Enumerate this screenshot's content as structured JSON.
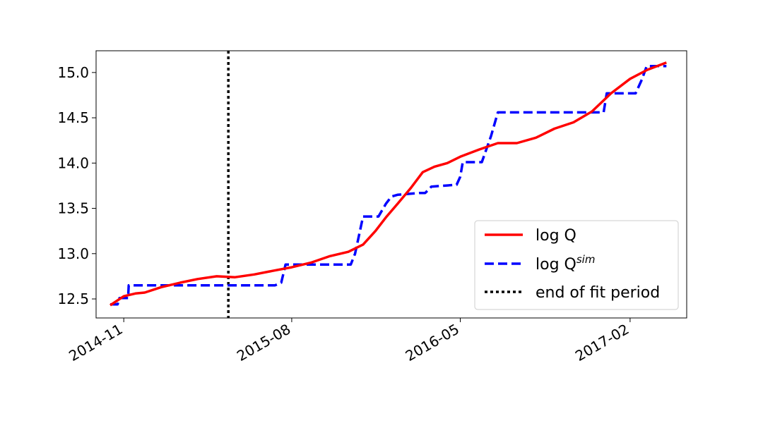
{
  "chart_data": {
    "type": "line",
    "title": "",
    "xlabel": "",
    "ylabel": "",
    "xlim": [
      "2014-09-17",
      "2017-05-04"
    ],
    "ylim": [
      12.29,
      15.24
    ],
    "x_ticks": [
      {
        "date": "2014-11-01",
        "label": "2014-11"
      },
      {
        "date": "2015-08-01",
        "label": "2015-08"
      },
      {
        "date": "2016-05-01",
        "label": "2016-05"
      },
      {
        "date": "2017-02-01",
        "label": "2017-02"
      }
    ],
    "y_ticks": [
      {
        "value": 12.5,
        "label": "12.5"
      },
      {
        "value": 13.0,
        "label": "13.0"
      },
      {
        "value": 13.5,
        "label": "13.5"
      },
      {
        "value": 14.0,
        "label": "14.0"
      },
      {
        "value": 14.5,
        "label": "14.5"
      },
      {
        "value": 15.0,
        "label": "15.0"
      }
    ],
    "grid": false,
    "legend_position": "lower-right",
    "series": [
      {
        "name": "log Q",
        "color": "#ff0000",
        "style": "solid",
        "points": [
          {
            "x": "2014-10-10",
            "y": 12.43
          },
          {
            "x": "2014-11-01",
            "y": 12.53
          },
          {
            "x": "2014-11-20",
            "y": 12.56
          },
          {
            "x": "2014-12-05",
            "y": 12.57
          },
          {
            "x": "2015-01-01",
            "y": 12.63
          },
          {
            "x": "2015-02-01",
            "y": 12.68
          },
          {
            "x": "2015-03-01",
            "y": 12.72
          },
          {
            "x": "2015-04-01",
            "y": 12.75
          },
          {
            "x": "2015-05-01",
            "y": 12.74
          },
          {
            "x": "2015-06-01",
            "y": 12.77
          },
          {
            "x": "2015-07-01",
            "y": 12.81
          },
          {
            "x": "2015-08-01",
            "y": 12.85
          },
          {
            "x": "2015-09-01",
            "y": 12.9
          },
          {
            "x": "2015-10-01",
            "y": 12.97
          },
          {
            "x": "2015-11-01",
            "y": 13.02
          },
          {
            "x": "2015-11-25",
            "y": 13.1
          },
          {
            "x": "2015-12-15",
            "y": 13.25
          },
          {
            "x": "2016-01-01",
            "y": 13.4
          },
          {
            "x": "2016-01-20",
            "y": 13.55
          },
          {
            "x": "2016-02-10",
            "y": 13.72
          },
          {
            "x": "2016-03-01",
            "y": 13.9
          },
          {
            "x": "2016-03-20",
            "y": 13.96
          },
          {
            "x": "2016-04-10",
            "y": 14.0
          },
          {
            "x": "2016-05-01",
            "y": 14.07
          },
          {
            "x": "2016-06-01",
            "y": 14.15
          },
          {
            "x": "2016-07-01",
            "y": 14.22
          },
          {
            "x": "2016-08-01",
            "y": 14.22
          },
          {
            "x": "2016-09-01",
            "y": 14.28
          },
          {
            "x": "2016-10-01",
            "y": 14.38
          },
          {
            "x": "2016-11-01",
            "y": 14.45
          },
          {
            "x": "2016-12-01",
            "y": 14.57
          },
          {
            "x": "2017-01-01",
            "y": 14.77
          },
          {
            "x": "2017-02-01",
            "y": 14.93
          },
          {
            "x": "2017-03-01",
            "y": 15.03
          },
          {
            "x": "2017-04-01",
            "y": 15.11
          }
        ]
      },
      {
        "name": "log Q^sim",
        "color": "#0000ff",
        "style": "dashed",
        "points": [
          {
            "x": "2014-10-10",
            "y": 12.44
          },
          {
            "x": "2014-10-22",
            "y": 12.44
          },
          {
            "x": "2014-10-25",
            "y": 12.51
          },
          {
            "x": "2014-11-08",
            "y": 12.51
          },
          {
            "x": "2014-11-09",
            "y": 12.65
          },
          {
            "x": "2015-07-05",
            "y": 12.65
          },
          {
            "x": "2015-07-15",
            "y": 12.68
          },
          {
            "x": "2015-07-22",
            "y": 12.88
          },
          {
            "x": "2015-11-05",
            "y": 12.88
          },
          {
            "x": "2015-11-12",
            "y": 13.0
          },
          {
            "x": "2015-11-25",
            "y": 13.41
          },
          {
            "x": "2015-12-20",
            "y": 13.41
          },
          {
            "x": "2016-01-01",
            "y": 13.55
          },
          {
            "x": "2016-01-10",
            "y": 13.63
          },
          {
            "x": "2016-01-20",
            "y": 13.65
          },
          {
            "x": "2016-02-25",
            "y": 13.67
          },
          {
            "x": "2016-03-05",
            "y": 13.67
          },
          {
            "x": "2016-03-15",
            "y": 13.74
          },
          {
            "x": "2016-04-25",
            "y": 13.76
          },
          {
            "x": "2016-05-01",
            "y": 13.85
          },
          {
            "x": "2016-05-05",
            "y": 14.01
          },
          {
            "x": "2016-06-05",
            "y": 14.01
          },
          {
            "x": "2016-06-20",
            "y": 14.3
          },
          {
            "x": "2016-07-01",
            "y": 14.56
          },
          {
            "x": "2016-12-20",
            "y": 14.56
          },
          {
            "x": "2016-12-25",
            "y": 14.77
          },
          {
            "x": "2017-02-10",
            "y": 14.77
          },
          {
            "x": "2017-02-20",
            "y": 14.92
          },
          {
            "x": "2017-02-28",
            "y": 15.07
          },
          {
            "x": "2017-04-01",
            "y": 15.07
          }
        ]
      }
    ],
    "vertical_line": {
      "x": "2015-04-20",
      "color": "#000000",
      "style": "dotted",
      "name": "end of fit period"
    }
  },
  "legend": {
    "items": [
      {
        "label": "log Q",
        "color": "#ff0000",
        "style": "solid"
      },
      {
        "label": "log Q",
        "superscript": "sim",
        "color": "#0000ff",
        "style": "dashed"
      },
      {
        "label": "end of fit period",
        "color": "#000000",
        "style": "dotted"
      }
    ]
  }
}
